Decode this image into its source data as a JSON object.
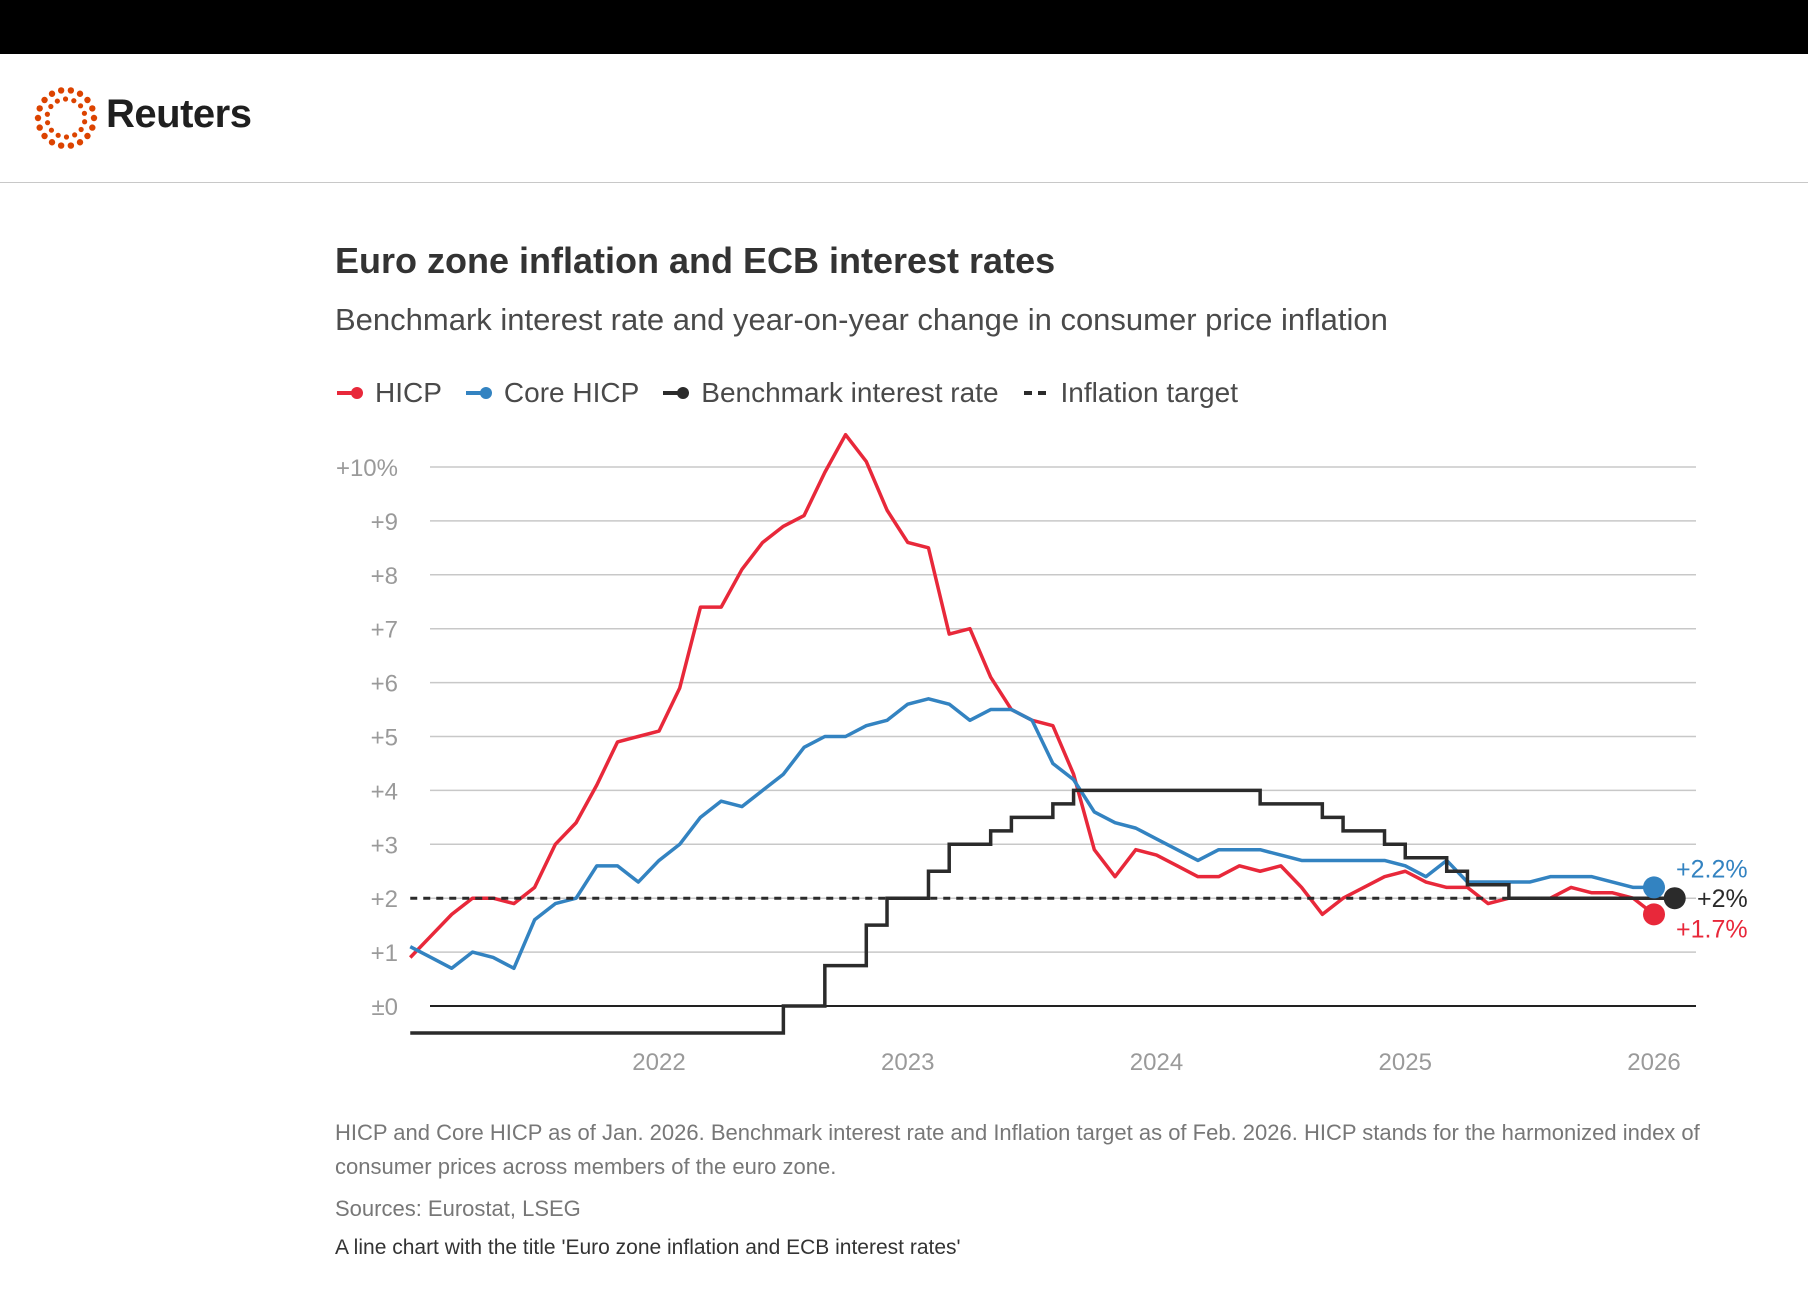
{
  "header": {
    "brand": "Reuters",
    "logo_color": "#dc4300"
  },
  "chart_text": {
    "title": "Euro zone inflation and ECB interest rates",
    "subtitle": "Benchmark interest rate and year-on-year change in consumer price inflation",
    "note": "HICP and Core HICP as of Jan. 2026. Benchmark interest rate and Inflation target as of Feb. 2026. HICP stands for the harmonized index of consumer prices across members of the euro zone.",
    "sources": "Sources: Eurostat, LSEG",
    "alt_text": "A line chart with the title 'Euro zone inflation and ECB interest rates'"
  },
  "legend": [
    {
      "label": "HICP",
      "color": "#e8283a",
      "style": "line-dot"
    },
    {
      "label": "Core HICP",
      "color": "#3383c1",
      "style": "line-dot"
    },
    {
      "label": "Benchmark interest rate",
      "color": "#2b2b2b",
      "style": "line-dot"
    },
    {
      "label": "Inflation target",
      "color": "#2b2b2b",
      "style": "dashed"
    }
  ],
  "chart_data": {
    "type": "line",
    "title": "Euro zone inflation and ECB interest rates",
    "subtitle": "Benchmark interest rate and year-on-year change in consumer price inflation",
    "ylim": [
      -0.5,
      10
    ],
    "y_ticks": [
      0,
      1,
      2,
      3,
      4,
      5,
      6,
      7,
      8,
      9,
      10
    ],
    "y_tick_labels": [
      "±0",
      "+1",
      "+2",
      "+3",
      "+4",
      "+5",
      "+6",
      "+7",
      "+8",
      "+9",
      "+10%"
    ],
    "x_range": [
      "2021-01",
      "2026-02"
    ],
    "x_ticks": [
      "2022",
      "2023",
      "2024",
      "2025",
      "2026"
    ],
    "grid": "horizontal",
    "legend_position": "top-left",
    "series": [
      {
        "name": "HICP",
        "color": "#e8283a",
        "end_label": "+1.7%",
        "x": [
          "2021-01",
          "2021-02",
          "2021-03",
          "2021-04",
          "2021-05",
          "2021-06",
          "2021-07",
          "2021-08",
          "2021-09",
          "2021-10",
          "2021-11",
          "2021-12",
          "2022-01",
          "2022-02",
          "2022-03",
          "2022-04",
          "2022-05",
          "2022-06",
          "2022-07",
          "2022-08",
          "2022-09",
          "2022-10",
          "2022-11",
          "2022-12",
          "2023-01",
          "2023-02",
          "2023-03",
          "2023-04",
          "2023-05",
          "2023-06",
          "2023-07",
          "2023-08",
          "2023-09",
          "2023-10",
          "2023-11",
          "2023-12",
          "2024-01",
          "2024-02",
          "2024-03",
          "2024-04",
          "2024-05",
          "2024-06",
          "2024-07",
          "2024-08",
          "2024-09",
          "2024-10",
          "2024-11",
          "2024-12",
          "2025-01",
          "2025-02",
          "2025-03",
          "2025-04",
          "2025-05",
          "2025-06",
          "2025-07",
          "2025-08",
          "2025-09",
          "2025-10",
          "2025-11",
          "2025-12",
          "2026-01"
        ],
        "values": [
          0.9,
          1.3,
          1.7,
          2.0,
          2.0,
          1.9,
          2.2,
          3.0,
          3.4,
          4.1,
          4.9,
          5.0,
          5.1,
          5.9,
          7.4,
          7.4,
          8.1,
          8.6,
          8.9,
          9.1,
          9.9,
          10.6,
          10.1,
          9.2,
          8.6,
          8.5,
          6.9,
          7.0,
          6.1,
          5.5,
          5.3,
          5.2,
          4.3,
          2.9,
          2.4,
          2.9,
          2.8,
          2.6,
          2.4,
          2.4,
          2.6,
          2.5,
          2.6,
          2.2,
          1.7,
          2.0,
          2.2,
          2.4,
          2.5,
          2.3,
          2.2,
          2.2,
          1.9,
          2.0,
          2.0,
          2.0,
          2.2,
          2.1,
          2.1,
          2.0,
          1.7
        ]
      },
      {
        "name": "Core HICP",
        "color": "#3383c1",
        "end_label": "+2.2%",
        "x": [
          "2021-01",
          "2021-02",
          "2021-03",
          "2021-04",
          "2021-05",
          "2021-06",
          "2021-07",
          "2021-08",
          "2021-09",
          "2021-10",
          "2021-11",
          "2021-12",
          "2022-01",
          "2022-02",
          "2022-03",
          "2022-04",
          "2022-05",
          "2022-06",
          "2022-07",
          "2022-08",
          "2022-09",
          "2022-10",
          "2022-11",
          "2022-12",
          "2023-01",
          "2023-02",
          "2023-03",
          "2023-04",
          "2023-05",
          "2023-06",
          "2023-07",
          "2023-08",
          "2023-09",
          "2023-10",
          "2023-11",
          "2023-12",
          "2024-01",
          "2024-02",
          "2024-03",
          "2024-04",
          "2024-05",
          "2024-06",
          "2024-07",
          "2024-08",
          "2024-09",
          "2024-10",
          "2024-11",
          "2024-12",
          "2025-01",
          "2025-02",
          "2025-03",
          "2025-04",
          "2025-05",
          "2025-06",
          "2025-07",
          "2025-08",
          "2025-09",
          "2025-10",
          "2025-11",
          "2025-12",
          "2026-01"
        ],
        "values": [
          1.1,
          0.9,
          0.7,
          1.0,
          0.9,
          0.7,
          1.6,
          1.9,
          2.0,
          2.6,
          2.6,
          2.3,
          2.7,
          3.0,
          3.5,
          3.8,
          3.7,
          4.0,
          4.3,
          4.8,
          5.0,
          5.0,
          5.2,
          5.3,
          5.6,
          5.7,
          5.6,
          5.3,
          5.5,
          5.5,
          5.3,
          4.5,
          4.2,
          3.6,
          3.4,
          3.3,
          3.1,
          2.9,
          2.7,
          2.9,
          2.9,
          2.9,
          2.8,
          2.7,
          2.7,
          2.7,
          2.7,
          2.7,
          2.6,
          2.4,
          2.7,
          2.3,
          2.3,
          2.3,
          2.3,
          2.4,
          2.4,
          2.4,
          2.3,
          2.2,
          2.2
        ]
      },
      {
        "name": "Benchmark interest rate",
        "color": "#2b2b2b",
        "end_label": "+2%",
        "step": true,
        "x": [
          "2021-01",
          "2022-07",
          "2022-09",
          "2022-11",
          "2022-12",
          "2023-02",
          "2023-03",
          "2023-05",
          "2023-06",
          "2023-08",
          "2023-09",
          "2024-06",
          "2024-09",
          "2024-10",
          "2024-12",
          "2025-01",
          "2025-03",
          "2025-04",
          "2025-06",
          "2026-02"
        ],
        "values": [
          -0.5,
          0.0,
          0.75,
          1.5,
          2.0,
          2.5,
          3.0,
          3.25,
          3.5,
          3.75,
          4.0,
          3.75,
          3.5,
          3.25,
          3.0,
          2.75,
          2.5,
          2.25,
          2.0,
          2.0
        ]
      },
      {
        "name": "Inflation target",
        "color": "#2b2b2b",
        "dashed": true,
        "x": [
          "2021-01",
          "2026-02"
        ],
        "values": [
          2,
          2
        ]
      }
    ]
  }
}
